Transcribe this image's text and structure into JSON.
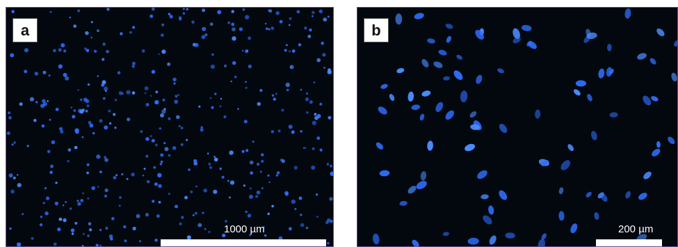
{
  "panels": {
    "a": {
      "label": "a",
      "scale_text": "1000 µm",
      "description": "many small scattered nuclei"
    },
    "b": {
      "label": "b",
      "scale_text": "200 µm",
      "description": "fewer larger oval nuclei"
    }
  },
  "colors": {
    "background": "#03080f",
    "nuclei": "#2f6fff",
    "nuclei_bright": "#4a8dff",
    "border": "#6a4f8a"
  }
}
